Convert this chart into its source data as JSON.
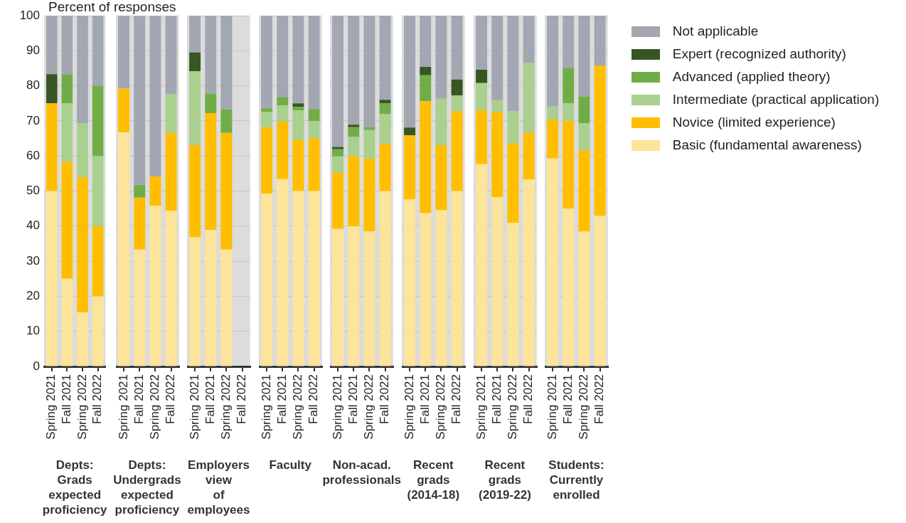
{
  "chart_data": [
    {
      "type": "bar",
      "stacked": true,
      "categories": [
        "Spring 2021",
        "Fall 2021",
        "Spring 2022",
        "Fall 2022"
      ],
      "xlabel": "Depts: Grads expected proficiency",
      "ylabel": "Percent of responses",
      "ylim": [
        0,
        100
      ],
      "yticks": [
        0,
        10,
        20,
        30,
        40,
        50,
        60,
        70,
        80,
        90,
        100
      ],
      "grid": "y",
      "legend": false,
      "series": [
        {
          "color": "#fde49b",
          "values": [
            50,
            25,
            15.4,
            20
          ]
        },
        {
          "color": "#ffbf00",
          "values": [
            25,
            33.3,
            38.5,
            20
          ]
        },
        {
          "color": "#a9d08e",
          "values": [
            0,
            16.7,
            15.4,
            20
          ]
        },
        {
          "color": "#70ad47",
          "values": [
            0,
            8.3,
            0,
            20
          ]
        },
        {
          "color": "#375623",
          "values": [
            8.3,
            0,
            0,
            0
          ]
        },
        {
          "color": "#a2a7b1",
          "values": [
            16.7,
            16.7,
            30.7,
            20
          ]
        }
      ]
    },
    {
      "type": "bar",
      "stacked": true,
      "categories": [
        "Spring 2021",
        "Fall 2021",
        "Spring 2022",
        "Fall 2022"
      ],
      "xlabel": "Depts: Undergrads expected proficiency",
      "ylim": [
        0,
        100
      ],
      "yticks": [
        0,
        10,
        20,
        30,
        40,
        50,
        60,
        70,
        80,
        90,
        100
      ],
      "grid": "y",
      "legend": false,
      "tick_labels": "x",
      "series": [
        {
          "color": "#fde49b",
          "values": [
            66.7,
            33.3,
            45.8,
            44.4
          ]
        },
        {
          "color": "#ffbf00",
          "values": [
            12.5,
            14.8,
            8.3,
            22.2
          ]
        },
        {
          "color": "#a9d08e",
          "values": [
            0,
            0,
            0,
            11.1
          ]
        },
        {
          "color": "#70ad47",
          "values": [
            0,
            3.7,
            0,
            0
          ]
        },
        {
          "color": "#375623",
          "values": [
            0,
            0,
            0,
            0
          ]
        },
        {
          "color": "#a2a7b1",
          "values": [
            20.8,
            48.1,
            45.8,
            22.2
          ]
        }
      ]
    },
    {
      "type": "bar",
      "stacked": true,
      "categories": [
        "Spring 2021",
        "Fall 2021",
        "Spring 2022",
        "Fall 2022"
      ],
      "xlabel": "Employers view of employees",
      "ylim": [
        0,
        100
      ],
      "yticks": [
        0,
        10,
        20,
        30,
        40,
        50,
        60,
        70,
        80,
        90,
        100
      ],
      "grid": "y",
      "legend": false,
      "tick_labels": "x",
      "series": [
        {
          "color": "#fde49b",
          "values": [
            36.8,
            38.9,
            33.3,
            null
          ]
        },
        {
          "color": "#ffbf00",
          "values": [
            26.3,
            33.3,
            33.3,
            null
          ]
        },
        {
          "color": "#a9d08e",
          "values": [
            21.1,
            0,
            0,
            null
          ]
        },
        {
          "color": "#70ad47",
          "values": [
            0,
            5.6,
            6.7,
            null
          ]
        },
        {
          "color": "#375623",
          "values": [
            5.3,
            0,
            0,
            null
          ]
        },
        {
          "color": "#a2a7b1",
          "values": [
            10.5,
            22.2,
            26.7,
            null
          ]
        }
      ]
    },
    {
      "type": "bar",
      "stacked": true,
      "categories": [
        "Spring 2021",
        "Fall 2021",
        "Spring 2022",
        "Fall 2022"
      ],
      "xlabel": "Faculty",
      "ylim": [
        0,
        100
      ],
      "yticks": [
        0,
        10,
        20,
        30,
        40,
        50,
        60,
        70,
        80,
        90,
        100
      ],
      "grid": "y",
      "legend": false,
      "tick_labels": "x",
      "series": [
        {
          "color": "#fde49b",
          "values": [
            49.3,
            53.4,
            50,
            50
          ]
        },
        {
          "color": "#ffbf00",
          "values": [
            18.9,
            16.4,
            14.6,
            15
          ]
        },
        {
          "color": "#a9d08e",
          "values": [
            4.4,
            4.6,
            8.4,
            5
          ]
        },
        {
          "color": "#70ad47",
          "values": [
            1.0,
            2.4,
            1.0,
            3.4
          ]
        },
        {
          "color": "#375623",
          "values": [
            0,
            0,
            1.0,
            0
          ]
        },
        {
          "color": "#a2a7b1",
          "values": [
            26.4,
            23.2,
            25,
            26.6
          ]
        }
      ]
    },
    {
      "type": "bar",
      "stacked": true,
      "categories": [
        "Spring 2021",
        "Fall 2021",
        "Spring 2022",
        "Fall 2022"
      ],
      "xlabel": "Non-acad. professionals",
      "ylim": [
        0,
        100
      ],
      "yticks": [
        0,
        10,
        20,
        30,
        40,
        50,
        60,
        70,
        80,
        90,
        100
      ],
      "grid": "y",
      "legend": false,
      "tick_labels": "x",
      "series": [
        {
          "color": "#fde49b",
          "values": [
            39.2,
            39.9,
            38.5,
            50
          ]
        },
        {
          "color": "#ffbf00",
          "values": [
            16.0,
            20.1,
            20.8,
            13.4
          ]
        },
        {
          "color": "#a9d08e",
          "values": [
            4.7,
            5.4,
            8.1,
            8.6
          ]
        },
        {
          "color": "#70ad47",
          "values": [
            2.0,
            2.8,
            0.8,
            3.0
          ]
        },
        {
          "color": "#375623",
          "values": [
            0.7,
            0.7,
            0,
            1.0
          ]
        },
        {
          "color": "#a2a7b1",
          "values": [
            37.4,
            31.1,
            31.8,
            24
          ]
        }
      ]
    },
    {
      "type": "bar",
      "stacked": true,
      "categories": [
        "Spring 2021",
        "Fall 2021",
        "Spring 2022",
        "Fall 2022"
      ],
      "xlabel": "Recent grads (2014-18)",
      "ylim": [
        0,
        100
      ],
      "yticks": [
        0,
        10,
        20,
        30,
        40,
        50,
        60,
        70,
        80,
        90,
        100
      ],
      "grid": "y",
      "legend": false,
      "tick_labels": "x",
      "series": [
        {
          "color": "#fde49b",
          "values": [
            47.6,
            43.7,
            44.5,
            50
          ]
        },
        {
          "color": "#ffbf00",
          "values": [
            18.3,
            31.9,
            18.6,
            22.7
          ]
        },
        {
          "color": "#a9d08e",
          "values": [
            0,
            0,
            13.2,
            4.6
          ]
        },
        {
          "color": "#70ad47",
          "values": [
            0,
            7.4,
            0,
            0
          ]
        },
        {
          "color": "#375623",
          "values": [
            2.2,
            2.4,
            0,
            4.5
          ]
        },
        {
          "color": "#a2a7b1",
          "values": [
            31.9,
            14.6,
            23.7,
            18.2
          ]
        }
      ]
    },
    {
      "type": "bar",
      "stacked": true,
      "categories": [
        "Spring 2021",
        "Fall 2021",
        "Spring 2022",
        "Fall 2022"
      ],
      "xlabel": "Recent grads (2019-22)",
      "ylim": [
        0,
        100
      ],
      "yticks": [
        0,
        10,
        20,
        30,
        40,
        50,
        60,
        70,
        80,
        90,
        100
      ],
      "grid": "y",
      "legend": false,
      "tick_labels": "x",
      "series": [
        {
          "color": "#fde49b",
          "values": [
            57.7,
            48.3,
            40.9,
            53.3
          ]
        },
        {
          "color": "#ffbf00",
          "values": [
            15.4,
            24.1,
            22.7,
            13.3
          ]
        },
        {
          "color": "#a9d08e",
          "values": [
            7.7,
            3.5,
            9.1,
            20
          ]
        },
        {
          "color": "#70ad47",
          "values": [
            0,
            0,
            0,
            0
          ]
        },
        {
          "color": "#375623",
          "values": [
            3.8,
            0,
            0,
            0
          ]
        },
        {
          "color": "#a2a7b1",
          "values": [
            15.4,
            24.1,
            27.3,
            13.3
          ]
        }
      ]
    },
    {
      "type": "bar",
      "stacked": true,
      "categories": [
        "Spring 2021",
        "Fall 2021",
        "Spring 2022",
        "Fall 2022"
      ],
      "xlabel": "Students: Currently enrolled",
      "ylim": [
        0,
        100
      ],
      "yticks": [
        0,
        10,
        20,
        30,
        40,
        50,
        60,
        70,
        80,
        90,
        100
      ],
      "grid": "y",
      "legend": "right",
      "tick_labels": "x",
      "series": [
        {
          "name": "Basic (fundamental awareness)",
          "color": "#fde49b",
          "values": [
            59.3,
            45,
            38.5,
            42.9
          ]
        },
        {
          "name": "Novice (limited experience)",
          "color": "#ffbf00",
          "values": [
            11.1,
            25,
            23.1,
            42.9
          ]
        },
        {
          "name": "Intermediate (practical application)",
          "color": "#a9d08e",
          "values": [
            3.7,
            5,
            7.7,
            0
          ]
        },
        {
          "name": "Advanced (applied theory)",
          "color": "#70ad47",
          "values": [
            0,
            10,
            7.7,
            0
          ]
        },
        {
          "name": "Expert (recognized authority)",
          "color": "#375623",
          "values": [
            0,
            0,
            0,
            0
          ]
        },
        {
          "name": "Not applicable",
          "color": "#a2a7b1",
          "values": [
            25.9,
            15,
            23.0,
            14.2
          ]
        }
      ]
    }
  ]
}
